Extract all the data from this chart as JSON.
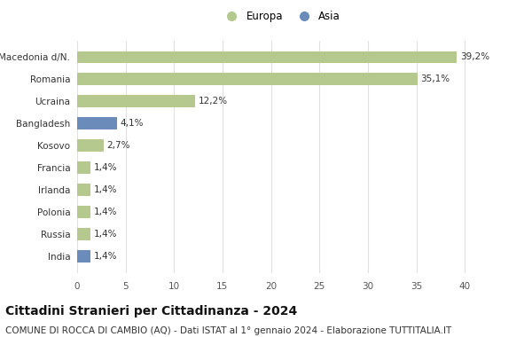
{
  "categories": [
    "India",
    "Russia",
    "Polonia",
    "Irlanda",
    "Francia",
    "Kosovo",
    "Bangladesh",
    "Ucraina",
    "Romania",
    "Macedonia d/N."
  ],
  "values": [
    1.4,
    1.4,
    1.4,
    1.4,
    1.4,
    2.7,
    4.1,
    12.2,
    35.1,
    39.2
  ],
  "bar_colors": [
    "#6b8cba",
    "#b5c98e",
    "#b5c98e",
    "#b5c98e",
    "#b5c98e",
    "#b5c98e",
    "#6b8cba",
    "#b5c98e",
    "#b5c98e",
    "#b5c98e"
  ],
  "labels": [
    "1,4%",
    "1,4%",
    "1,4%",
    "1,4%",
    "1,4%",
    "2,7%",
    "4,1%",
    "12,2%",
    "35,1%",
    "39,2%"
  ],
  "xlim": [
    0,
    42
  ],
  "xticks": [
    0,
    5,
    10,
    15,
    20,
    25,
    30,
    35,
    40
  ],
  "title": "Cittadini Stranieri per Cittadinanza - 2024",
  "subtitle": "COMUNE DI ROCCA DI CAMBIO (AQ) - Dati ISTAT al 1° gennaio 2024 - Elaborazione TUTTITALIA.IT",
  "legend_europa_color": "#b5c98e",
  "legend_asia_color": "#6b8cba",
  "bg_color": "#ffffff",
  "grid_color": "#e0e0e0",
  "bar_height": 0.55,
  "title_fontsize": 10,
  "subtitle_fontsize": 7.5,
  "label_fontsize": 7.5,
  "tick_fontsize": 7.5,
  "legend_fontsize": 8.5
}
